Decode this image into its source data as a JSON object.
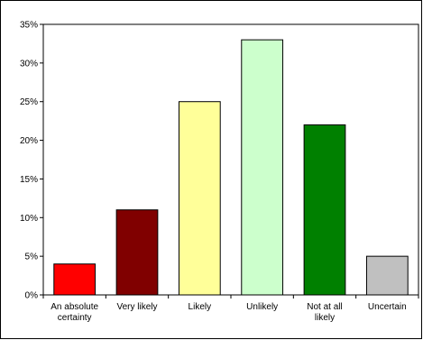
{
  "chart_data": {
    "type": "bar",
    "title": "",
    "xlabel": "",
    "ylabel": "",
    "categories": [
      [
        "An absolute",
        "certainty"
      ],
      [
        "Very likely"
      ],
      [
        "Likely"
      ],
      [
        "Unlikely"
      ],
      [
        "Not at all",
        "likely"
      ],
      [
        "Uncertain"
      ]
    ],
    "values": [
      4,
      11,
      25,
      33,
      22,
      5
    ],
    "colors": [
      "#ff0000",
      "#800000",
      "#ffff99",
      "#ccffcc",
      "#008000",
      "#c0c0c0"
    ],
    "ylim": [
      0,
      35
    ],
    "yticks": [
      0,
      5,
      10,
      15,
      20,
      25,
      30,
      35
    ],
    "ytick_format": "percent",
    "grid": false,
    "legend": "none"
  }
}
